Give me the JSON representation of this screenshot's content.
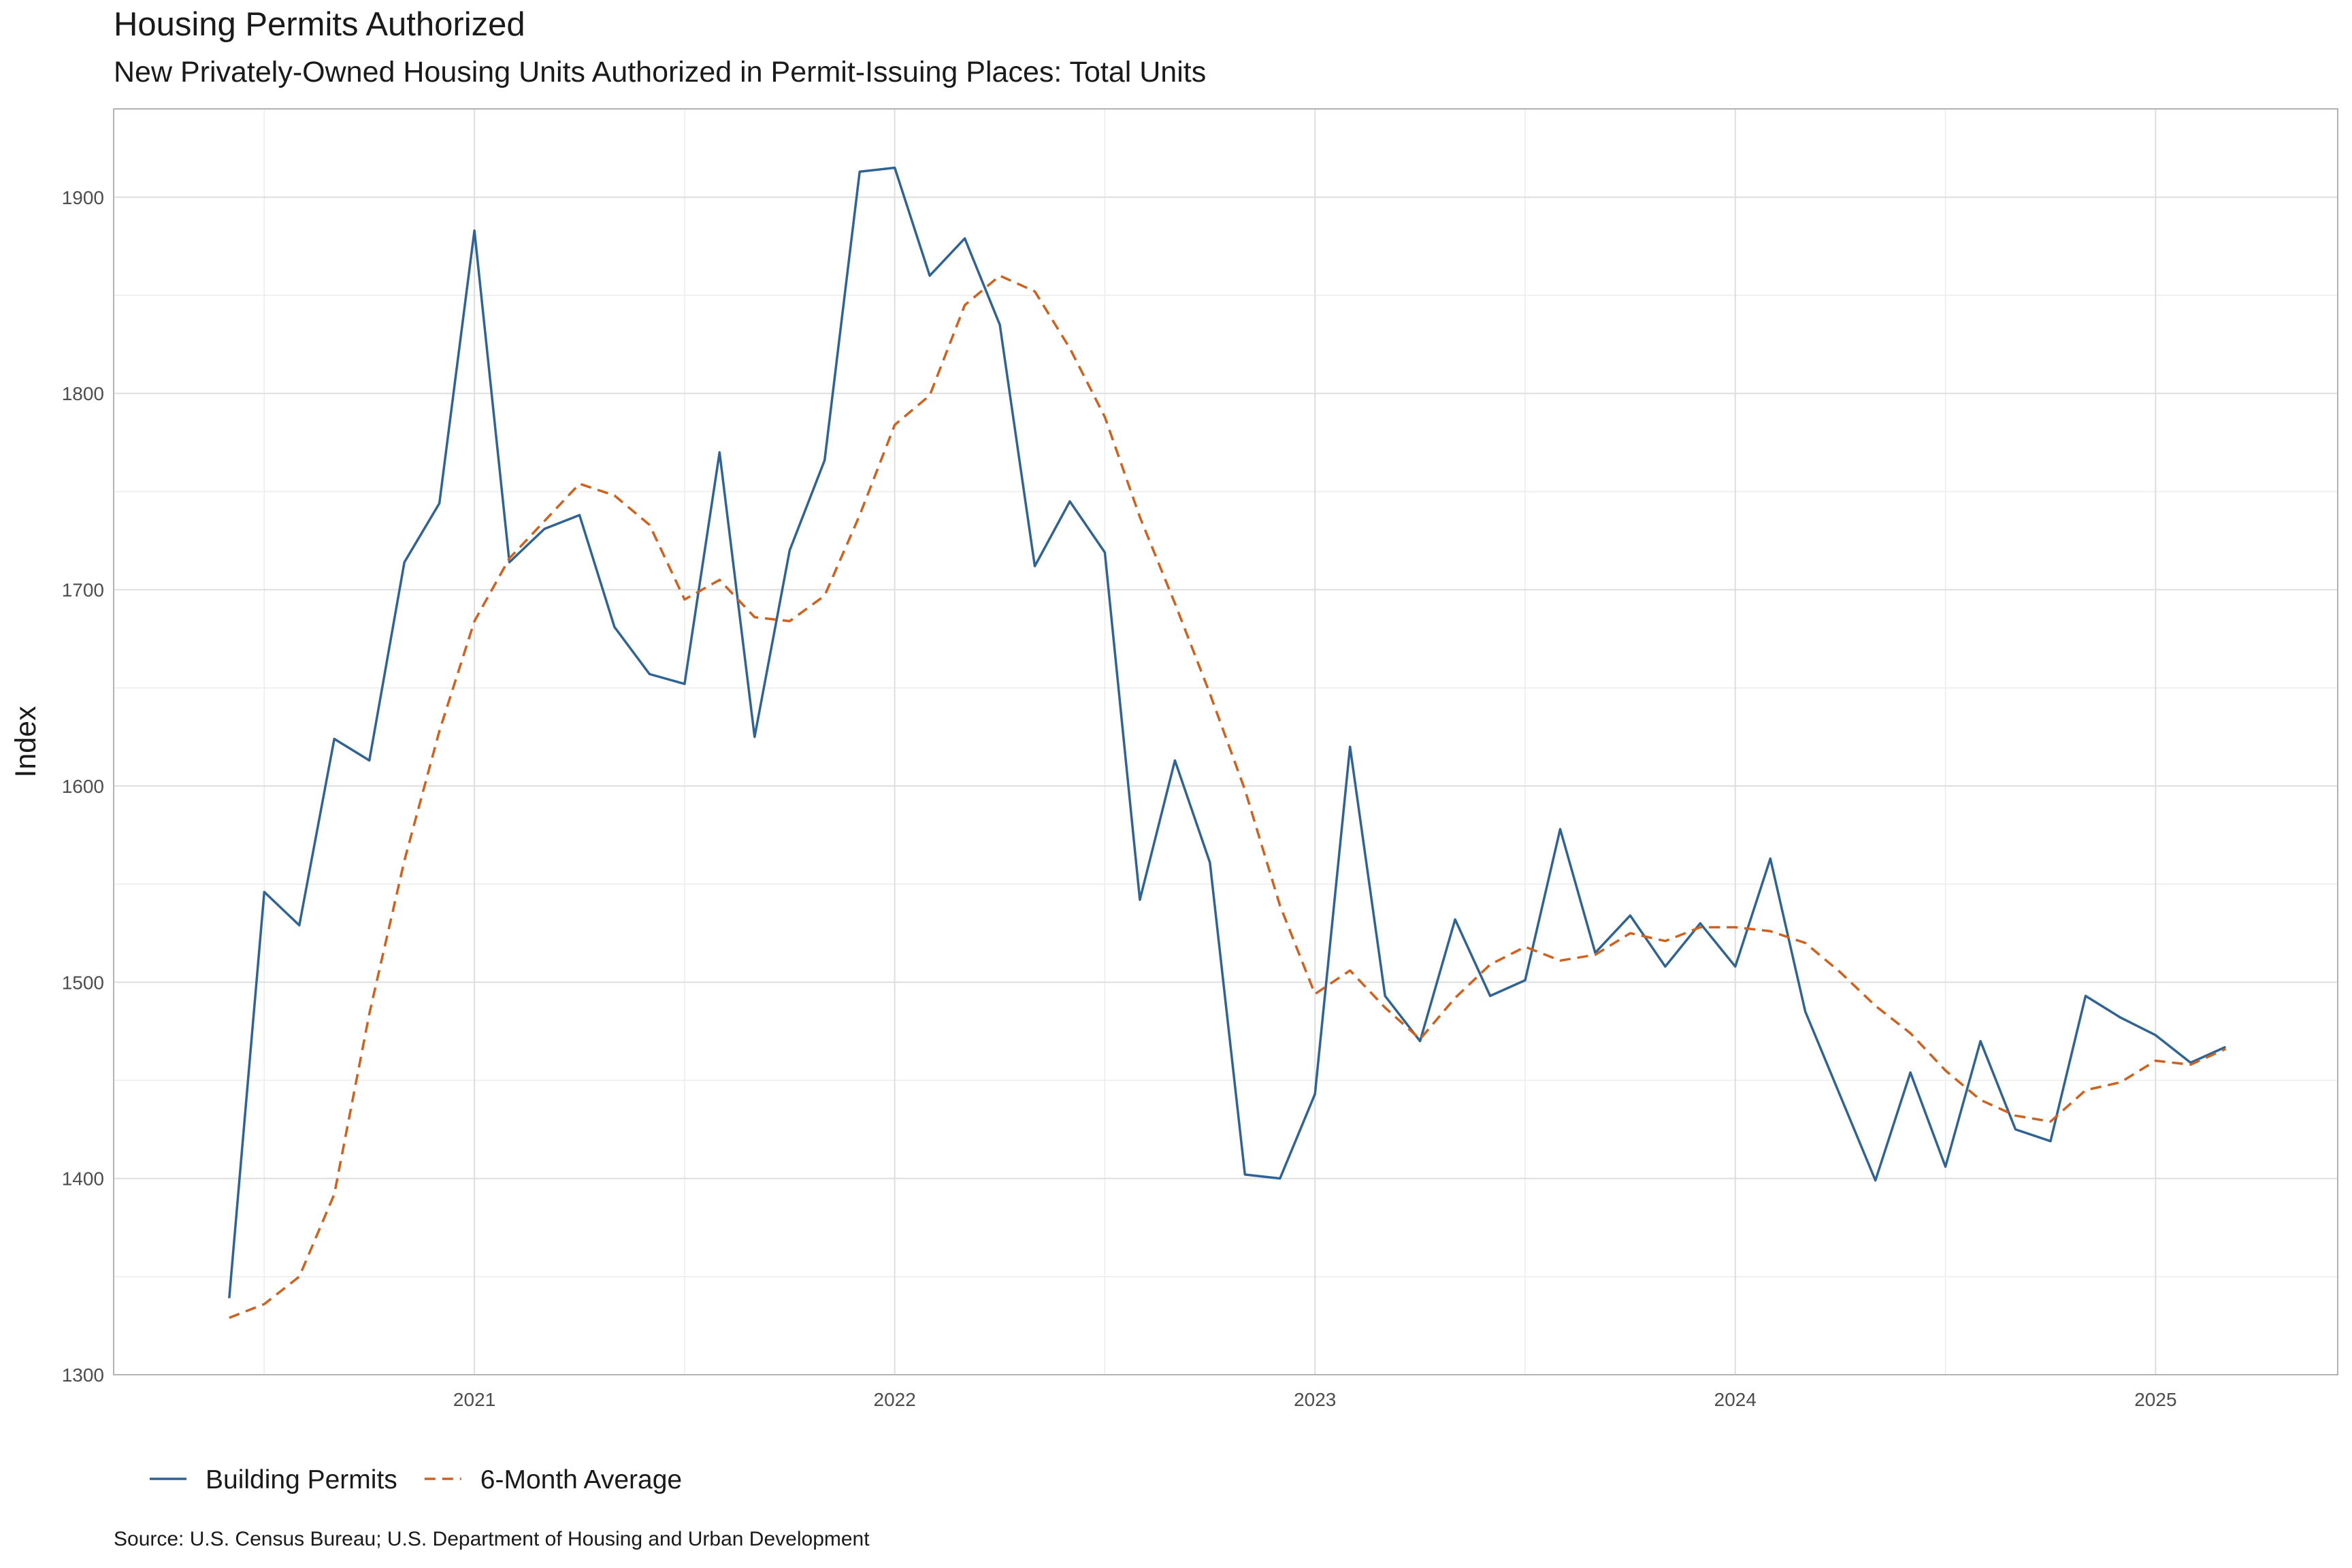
{
  "chart_data": {
    "type": "line",
    "title": "Housing Permits Authorized",
    "subtitle": "New Privately-Owned Housing Units Authorized in Permit-Issuing Places: Total Units",
    "ylabel": "Index",
    "xlabel": "",
    "caption": "Source: U.S. Census Bureau; U.S. Department of Housing and Urban Development",
    "x_ticks": [
      "2021",
      "2022",
      "2023",
      "2024",
      "2025"
    ],
    "y_ticks": [
      1300,
      1400,
      1500,
      1600,
      1700,
      1800,
      1900
    ],
    "ylim": [
      1300,
      1945
    ],
    "xlim": [
      "2020-03",
      "2025-06"
    ],
    "grid": true,
    "legend_position": "bottom",
    "x": [
      "2020-06",
      "2020-07",
      "2020-08",
      "2020-09",
      "2020-10",
      "2020-11",
      "2020-12",
      "2021-01",
      "2021-02",
      "2021-03",
      "2021-04",
      "2021-05",
      "2021-06",
      "2021-07",
      "2021-08",
      "2021-09",
      "2021-10",
      "2021-11",
      "2021-12",
      "2022-01",
      "2022-02",
      "2022-03",
      "2022-04",
      "2022-05",
      "2022-06",
      "2022-07",
      "2022-08",
      "2022-09",
      "2022-10",
      "2022-11",
      "2022-12",
      "2023-01",
      "2023-02",
      "2023-03",
      "2023-04",
      "2023-05",
      "2023-06",
      "2023-07",
      "2023-08",
      "2023-09",
      "2023-10",
      "2023-11",
      "2023-12",
      "2024-01",
      "2024-02",
      "2024-03",
      "2024-04",
      "2024-05",
      "2024-06",
      "2024-07",
      "2024-08",
      "2024-09",
      "2024-10",
      "2024-11",
      "2024-12",
      "2025-01",
      "2025-02",
      "2025-03"
    ],
    "series": [
      {
        "name": "Building Permits",
        "color": "#2e6396",
        "dash": "solid",
        "values": [
          1339,
          1546,
          1529,
          1624,
          1613,
          1714,
          1744,
          1883,
          1714,
          1731,
          1738,
          1681,
          1657,
          1652,
          1770,
          1625,
          1720,
          1766,
          1913,
          1915,
          1860,
          1879,
          1835,
          1712,
          1745,
          1719,
          1542,
          1613,
          1561,
          1402,
          1400,
          1443,
          1620,
          1493,
          1470,
          1532,
          1493,
          1501,
          1578,
          1515,
          1534,
          1508,
          1530,
          1508,
          1563,
          1485,
          1442,
          1399,
          1454,
          1406,
          1470,
          1425,
          1419,
          1493,
          1482,
          1473,
          1459,
          1467
        ]
      },
      {
        "name": "6-Month Average",
        "color": "#d2601a",
        "dash": "dashed",
        "values": [
          1329,
          1336,
          1350,
          1392,
          1484,
          1562,
          1628,
          1684,
          1716,
          1735,
          1754,
          1748,
          1733,
          1695,
          1705,
          1686,
          1684,
          1697,
          1738,
          1784,
          1799,
          1845,
          1860,
          1852,
          1823,
          1788,
          1737,
          1693,
          1647,
          1598,
          1539,
          1494,
          1506,
          1487,
          1471,
          1492,
          1509,
          1518,
          1511,
          1514,
          1525,
          1521,
          1528,
          1528,
          1526,
          1520,
          1505,
          1488,
          1474,
          1455,
          1440,
          1432,
          1429,
          1445,
          1449,
          1460,
          1458,
          1466
        ]
      }
    ]
  }
}
